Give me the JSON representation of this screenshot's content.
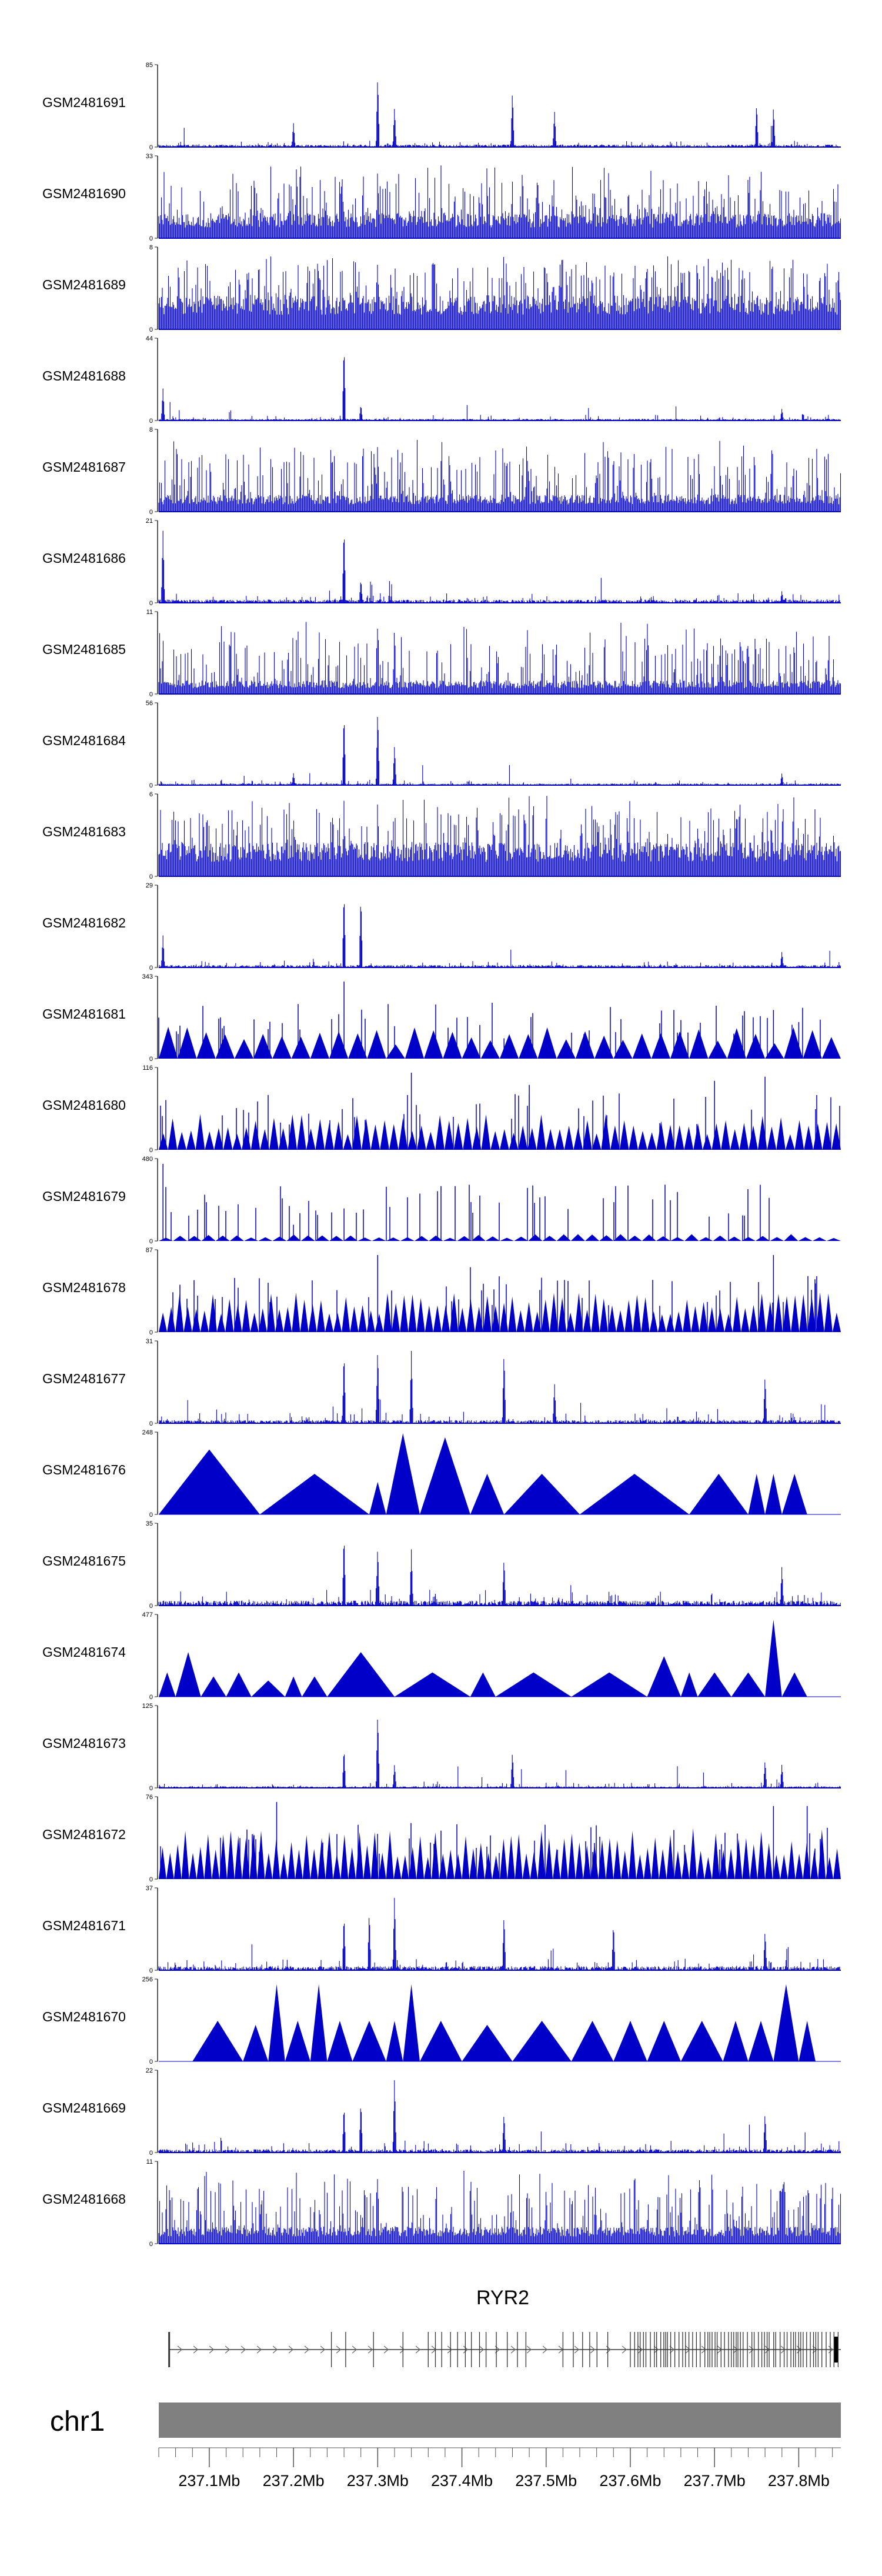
{
  "colors": {
    "signal": "#0000c8",
    "signal_light": "#3333dd",
    "axis": "#222222",
    "gene": "#333333",
    "ideogram": "#808080",
    "ticks": "#555555"
  },
  "chart_data": {
    "type": "area",
    "chromosome": "chr1",
    "x_range_mb": [
      237.04,
      237.85
    ],
    "tracks": [
      {
        "name": "GSM2481691",
        "ymax": "85",
        "style": "spiky",
        "base": 0.03,
        "noise": 0.05,
        "peaks": [
          [
            237.2,
            0.3
          ],
          [
            237.3,
            0.9
          ],
          [
            237.32,
            0.5
          ],
          [
            237.46,
            0.7
          ],
          [
            237.51,
            0.45
          ],
          [
            237.75,
            0.55
          ],
          [
            237.77,
            0.5
          ]
        ]
      },
      {
        "name": "GSM2481690",
        "ymax": "33",
        "style": "dense",
        "base": 0.22,
        "noise": 0.45,
        "peaks": [
          [
            237.3,
            0.9
          ],
          [
            237.49,
            0.8
          ],
          [
            237.74,
            0.85
          ]
        ]
      },
      {
        "name": "GSM2481689",
        "ymax": "8",
        "style": "dense",
        "base": 0.3,
        "noise": 0.5,
        "peaks": [
          [
            237.23,
            0.9
          ],
          [
            237.3,
            0.9
          ],
          [
            237.58,
            0.9
          ],
          [
            237.67,
            0.95
          ]
        ]
      },
      {
        "name": "GSM2481688",
        "ymax": "44",
        "style": "spiky",
        "base": 0.02,
        "noise": 0.06,
        "peaks": [
          [
            237.045,
            0.4
          ],
          [
            237.26,
            0.95
          ],
          [
            237.28,
            0.2
          ],
          [
            237.78,
            0.15
          ]
        ]
      },
      {
        "name": "GSM2481687",
        "ymax": "8",
        "style": "dense",
        "base": 0.15,
        "noise": 0.6,
        "peaks": [
          [
            237.3,
            0.9
          ],
          [
            237.58,
            0.8
          ]
        ]
      },
      {
        "name": "GSM2481686",
        "ymax": "21",
        "style": "spiky",
        "base": 0.04,
        "noise": 0.08,
        "peaks": [
          [
            237.045,
            0.9
          ],
          [
            237.26,
            0.95
          ],
          [
            237.28,
            0.3
          ],
          [
            237.78,
            0.15
          ]
        ]
      },
      {
        "name": "GSM2481685",
        "ymax": "11",
        "style": "dense",
        "base": 0.12,
        "noise": 0.5,
        "peaks": [
          [
            237.3,
            0.8
          ],
          [
            237.32,
            0.9
          ],
          [
            237.74,
            0.7
          ]
        ]
      },
      {
        "name": "GSM2481684",
        "ymax": "56",
        "style": "spiky",
        "base": 0.02,
        "noise": 0.05,
        "peaks": [
          [
            237.2,
            0.15
          ],
          [
            237.26,
            0.9
          ],
          [
            237.3,
            0.95
          ],
          [
            237.32,
            0.5
          ],
          [
            237.78,
            0.15
          ]
        ]
      },
      {
        "name": "GSM2481683",
        "ymax": "6",
        "style": "dense",
        "base": 0.3,
        "noise": 0.6,
        "peaks": [
          [
            237.26,
            0.95
          ],
          [
            237.3,
            1.0
          ]
        ]
      },
      {
        "name": "GSM2481682",
        "ymax": "29",
        "style": "spiky",
        "base": 0.03,
        "noise": 0.06,
        "peaks": [
          [
            237.045,
            0.4
          ],
          [
            237.26,
            0.95
          ],
          [
            237.28,
            0.9
          ],
          [
            237.78,
            0.2
          ]
        ]
      },
      {
        "name": "GSM2481681",
        "ymax": "343",
        "style": "tri",
        "count": 36,
        "amp": 0.28,
        "spikes": [
          [
            237.26,
            0.95
          ],
          [
            237.32,
            0.4
          ],
          [
            237.45,
            0.25
          ],
          [
            237.77,
            0.6
          ],
          [
            237.8,
            0.45
          ]
        ]
      },
      {
        "name": "GSM2481680",
        "ymax": "116",
        "style": "tri",
        "count": 74,
        "amp": 0.32,
        "spikes": [
          [
            237.34,
            0.95
          ],
          [
            237.48,
            0.8
          ],
          [
            237.7,
            0.85
          ],
          [
            237.76,
            0.9
          ],
          [
            237.82,
            0.5
          ]
        ]
      },
      {
        "name": "GSM2481679",
        "ymax": "480",
        "style": "tri",
        "count": 48,
        "amp": 0.06,
        "spikes": [
          [
            237.045,
            0.95
          ],
          [
            237.26,
            0.4
          ],
          [
            237.2,
            0.2
          ]
        ]
      },
      {
        "name": "GSM2481678",
        "ymax": "87",
        "style": "tri",
        "count": 82,
        "amp": 0.35,
        "spikes": [
          [
            237.3,
            0.95
          ],
          [
            237.41,
            0.8
          ],
          [
            237.77,
            0.95
          ],
          [
            237.82,
            0.6
          ]
        ]
      },
      {
        "name": "GSM2481677",
        "ymax": "31",
        "style": "spiky",
        "base": 0.04,
        "noise": 0.12,
        "peaks": [
          [
            237.26,
            0.9
          ],
          [
            237.3,
            0.95
          ],
          [
            237.34,
            0.9
          ],
          [
            237.45,
            0.9
          ],
          [
            237.51,
            0.5
          ],
          [
            237.76,
            0.6
          ]
        ]
      },
      {
        "name": "GSM2481676",
        "ymax": "248",
        "style": "bigtri",
        "tris": [
          [
            237.04,
            237.16,
            0.8
          ],
          [
            237.16,
            237.29,
            0.5
          ],
          [
            237.29,
            237.31,
            0.4
          ],
          [
            237.31,
            237.35,
            1.0
          ],
          [
            237.35,
            237.41,
            0.95
          ],
          [
            237.41,
            237.45,
            0.5
          ],
          [
            237.45,
            237.54,
            0.5
          ],
          [
            237.54,
            237.67,
            0.5
          ],
          [
            237.67,
            237.74,
            0.5
          ],
          [
            237.74,
            237.76,
            0.5
          ],
          [
            237.76,
            237.78,
            0.5
          ],
          [
            237.78,
            237.81,
            0.5
          ]
        ]
      },
      {
        "name": "GSM2481675",
        "ymax": "35",
        "style": "spiky",
        "base": 0.06,
        "noise": 0.14,
        "peaks": [
          [
            237.26,
            0.9
          ],
          [
            237.3,
            0.75
          ],
          [
            237.34,
            0.7
          ],
          [
            237.45,
            0.6
          ],
          [
            237.78,
            0.5
          ]
        ]
      },
      {
        "name": "GSM2481674",
        "ymax": "477",
        "style": "bigtri",
        "tris": [
          [
            237.04,
            237.06,
            0.3
          ],
          [
            237.06,
            237.09,
            0.55
          ],
          [
            237.09,
            237.12,
            0.25
          ],
          [
            237.12,
            237.15,
            0.3
          ],
          [
            237.15,
            237.19,
            0.2
          ],
          [
            237.19,
            237.21,
            0.25
          ],
          [
            237.21,
            237.24,
            0.25
          ],
          [
            237.24,
            237.32,
            0.55
          ],
          [
            237.32,
            237.41,
            0.3
          ],
          [
            237.41,
            237.44,
            0.3
          ],
          [
            237.44,
            237.53,
            0.3
          ],
          [
            237.53,
            237.62,
            0.3
          ],
          [
            237.62,
            237.66,
            0.5
          ],
          [
            237.66,
            237.68,
            0.3
          ],
          [
            237.68,
            237.72,
            0.3
          ],
          [
            237.72,
            237.76,
            0.3
          ],
          [
            237.76,
            237.78,
            0.95
          ],
          [
            237.78,
            237.81,
            0.3
          ]
        ]
      },
      {
        "name": "GSM2481673",
        "ymax": "125",
        "style": "spiky",
        "base": 0.02,
        "noise": 0.06,
        "peaks": [
          [
            237.26,
            0.5
          ],
          [
            237.3,
            0.95
          ],
          [
            237.32,
            0.3
          ],
          [
            237.46,
            0.45
          ],
          [
            237.76,
            0.35
          ],
          [
            237.78,
            0.3
          ]
        ]
      },
      {
        "name": "GSM2481672",
        "ymax": "76",
        "style": "tri",
        "count": 90,
        "amp": 0.45,
        "spikes": [
          [
            237.18,
            0.95
          ],
          [
            237.77,
            0.9
          ],
          [
            237.81,
            0.9
          ]
        ]
      },
      {
        "name": "GSM2481671",
        "ymax": "37",
        "style": "spiky",
        "base": 0.05,
        "noise": 0.12,
        "peaks": [
          [
            237.26,
            0.7
          ],
          [
            237.29,
            0.75
          ],
          [
            237.32,
            0.95
          ],
          [
            237.45,
            0.7
          ],
          [
            237.58,
            0.6
          ],
          [
            237.76,
            0.5
          ]
        ]
      },
      {
        "name": "GSM2481670",
        "ymax": "256",
        "style": "bigtri",
        "tris": [
          [
            237.08,
            237.14,
            0.5
          ],
          [
            237.14,
            237.17,
            0.45
          ],
          [
            237.17,
            237.19,
            0.95
          ],
          [
            237.19,
            237.22,
            0.5
          ],
          [
            237.22,
            237.24,
            0.95
          ],
          [
            237.24,
            237.27,
            0.5
          ],
          [
            237.27,
            237.31,
            0.5
          ],
          [
            237.31,
            237.33,
            0.5
          ],
          [
            237.33,
            237.35,
            0.95
          ],
          [
            237.35,
            237.4,
            0.5
          ],
          [
            237.4,
            237.46,
            0.45
          ],
          [
            237.46,
            237.53,
            0.5
          ],
          [
            237.53,
            237.58,
            0.5
          ],
          [
            237.58,
            237.62,
            0.5
          ],
          [
            237.62,
            237.66,
            0.5
          ],
          [
            237.66,
            237.71,
            0.5
          ],
          [
            237.71,
            237.74,
            0.5
          ],
          [
            237.74,
            237.77,
            0.5
          ],
          [
            237.77,
            237.8,
            0.95
          ],
          [
            237.8,
            237.82,
            0.5
          ]
        ]
      },
      {
        "name": "GSM2481669",
        "ymax": "22",
        "style": "spiky",
        "base": 0.04,
        "noise": 0.12,
        "peaks": [
          [
            237.26,
            0.6
          ],
          [
            237.28,
            0.65
          ],
          [
            237.32,
            0.95
          ],
          [
            237.45,
            0.5
          ],
          [
            237.76,
            0.5
          ]
        ]
      },
      {
        "name": "GSM2481668",
        "ymax": "11",
        "style": "dense",
        "base": 0.15,
        "noise": 0.55,
        "peaks": [
          [
            237.3,
            0.9
          ],
          [
            237.5,
            0.7
          ]
        ]
      }
    ],
    "gene": {
      "name": "RYR2",
      "start_mb": 237.052,
      "end_mb": 237.85,
      "strand": "+"
    },
    "ideogram_label": "chr1",
    "axis_ticks": [
      {
        "mb": 237.1,
        "label": "237.1Mb"
      },
      {
        "mb": 237.2,
        "label": "237.2Mb"
      },
      {
        "mb": 237.3,
        "label": "237.3Mb"
      },
      {
        "mb": 237.4,
        "label": "237.4Mb"
      },
      {
        "mb": 237.5,
        "label": "237.5Mb"
      },
      {
        "mb": 237.6,
        "label": "237.6Mb"
      },
      {
        "mb": 237.7,
        "label": "237.7Mb"
      },
      {
        "mb": 237.8,
        "label": "237.8Mb"
      }
    ]
  }
}
